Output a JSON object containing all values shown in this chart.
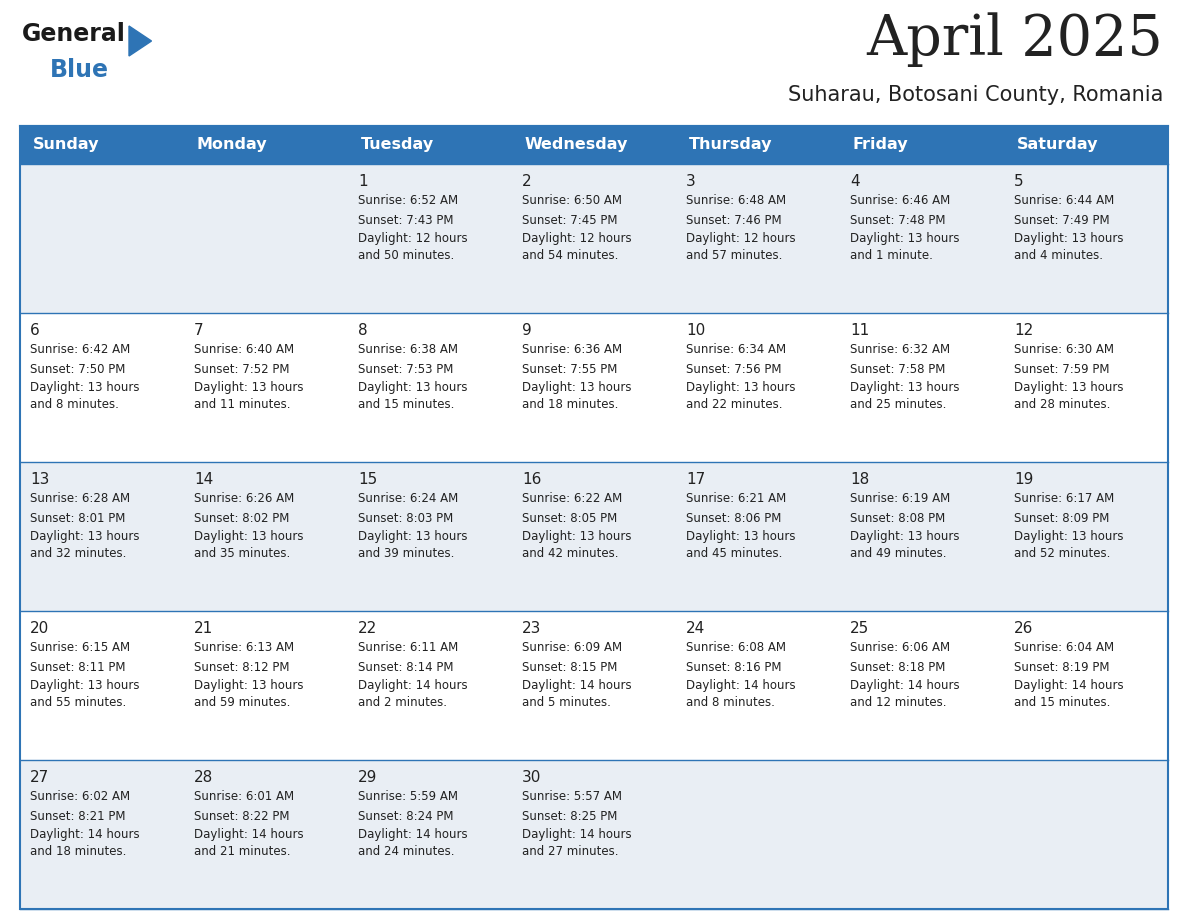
{
  "title": "April 2025",
  "subtitle": "Suharau, Botosani County, Romania",
  "header_bg": "#2e74b5",
  "header_text_color": "#ffffff",
  "row_bg_odd": "#e9eef4",
  "row_bg_even": "#ffffff",
  "border_color": "#2e74b5",
  "text_color": "#222222",
  "days_of_week": [
    "Sunday",
    "Monday",
    "Tuesday",
    "Wednesday",
    "Thursday",
    "Friday",
    "Saturday"
  ],
  "calendar": [
    [
      {
        "day": "",
        "sunrise": "",
        "sunset": "",
        "daylight": ""
      },
      {
        "day": "",
        "sunrise": "",
        "sunset": "",
        "daylight": ""
      },
      {
        "day": "1",
        "sunrise": "Sunrise: 6:52 AM",
        "sunset": "Sunset: 7:43 PM",
        "daylight": "Daylight: 12 hours\nand 50 minutes."
      },
      {
        "day": "2",
        "sunrise": "Sunrise: 6:50 AM",
        "sunset": "Sunset: 7:45 PM",
        "daylight": "Daylight: 12 hours\nand 54 minutes."
      },
      {
        "day": "3",
        "sunrise": "Sunrise: 6:48 AM",
        "sunset": "Sunset: 7:46 PM",
        "daylight": "Daylight: 12 hours\nand 57 minutes."
      },
      {
        "day": "4",
        "sunrise": "Sunrise: 6:46 AM",
        "sunset": "Sunset: 7:48 PM",
        "daylight": "Daylight: 13 hours\nand 1 minute."
      },
      {
        "day": "5",
        "sunrise": "Sunrise: 6:44 AM",
        "sunset": "Sunset: 7:49 PM",
        "daylight": "Daylight: 13 hours\nand 4 minutes."
      }
    ],
    [
      {
        "day": "6",
        "sunrise": "Sunrise: 6:42 AM",
        "sunset": "Sunset: 7:50 PM",
        "daylight": "Daylight: 13 hours\nand 8 minutes."
      },
      {
        "day": "7",
        "sunrise": "Sunrise: 6:40 AM",
        "sunset": "Sunset: 7:52 PM",
        "daylight": "Daylight: 13 hours\nand 11 minutes."
      },
      {
        "day": "8",
        "sunrise": "Sunrise: 6:38 AM",
        "sunset": "Sunset: 7:53 PM",
        "daylight": "Daylight: 13 hours\nand 15 minutes."
      },
      {
        "day": "9",
        "sunrise": "Sunrise: 6:36 AM",
        "sunset": "Sunset: 7:55 PM",
        "daylight": "Daylight: 13 hours\nand 18 minutes."
      },
      {
        "day": "10",
        "sunrise": "Sunrise: 6:34 AM",
        "sunset": "Sunset: 7:56 PM",
        "daylight": "Daylight: 13 hours\nand 22 minutes."
      },
      {
        "day": "11",
        "sunrise": "Sunrise: 6:32 AM",
        "sunset": "Sunset: 7:58 PM",
        "daylight": "Daylight: 13 hours\nand 25 minutes."
      },
      {
        "day": "12",
        "sunrise": "Sunrise: 6:30 AM",
        "sunset": "Sunset: 7:59 PM",
        "daylight": "Daylight: 13 hours\nand 28 minutes."
      }
    ],
    [
      {
        "day": "13",
        "sunrise": "Sunrise: 6:28 AM",
        "sunset": "Sunset: 8:01 PM",
        "daylight": "Daylight: 13 hours\nand 32 minutes."
      },
      {
        "day": "14",
        "sunrise": "Sunrise: 6:26 AM",
        "sunset": "Sunset: 8:02 PM",
        "daylight": "Daylight: 13 hours\nand 35 minutes."
      },
      {
        "day": "15",
        "sunrise": "Sunrise: 6:24 AM",
        "sunset": "Sunset: 8:03 PM",
        "daylight": "Daylight: 13 hours\nand 39 minutes."
      },
      {
        "day": "16",
        "sunrise": "Sunrise: 6:22 AM",
        "sunset": "Sunset: 8:05 PM",
        "daylight": "Daylight: 13 hours\nand 42 minutes."
      },
      {
        "day": "17",
        "sunrise": "Sunrise: 6:21 AM",
        "sunset": "Sunset: 8:06 PM",
        "daylight": "Daylight: 13 hours\nand 45 minutes."
      },
      {
        "day": "18",
        "sunrise": "Sunrise: 6:19 AM",
        "sunset": "Sunset: 8:08 PM",
        "daylight": "Daylight: 13 hours\nand 49 minutes."
      },
      {
        "day": "19",
        "sunrise": "Sunrise: 6:17 AM",
        "sunset": "Sunset: 8:09 PM",
        "daylight": "Daylight: 13 hours\nand 52 minutes."
      }
    ],
    [
      {
        "day": "20",
        "sunrise": "Sunrise: 6:15 AM",
        "sunset": "Sunset: 8:11 PM",
        "daylight": "Daylight: 13 hours\nand 55 minutes."
      },
      {
        "day": "21",
        "sunrise": "Sunrise: 6:13 AM",
        "sunset": "Sunset: 8:12 PM",
        "daylight": "Daylight: 13 hours\nand 59 minutes."
      },
      {
        "day": "22",
        "sunrise": "Sunrise: 6:11 AM",
        "sunset": "Sunset: 8:14 PM",
        "daylight": "Daylight: 14 hours\nand 2 minutes."
      },
      {
        "day": "23",
        "sunrise": "Sunrise: 6:09 AM",
        "sunset": "Sunset: 8:15 PM",
        "daylight": "Daylight: 14 hours\nand 5 minutes."
      },
      {
        "day": "24",
        "sunrise": "Sunrise: 6:08 AM",
        "sunset": "Sunset: 8:16 PM",
        "daylight": "Daylight: 14 hours\nand 8 minutes."
      },
      {
        "day": "25",
        "sunrise": "Sunrise: 6:06 AM",
        "sunset": "Sunset: 8:18 PM",
        "daylight": "Daylight: 14 hours\nand 12 minutes."
      },
      {
        "day": "26",
        "sunrise": "Sunrise: 6:04 AM",
        "sunset": "Sunset: 8:19 PM",
        "daylight": "Daylight: 14 hours\nand 15 minutes."
      }
    ],
    [
      {
        "day": "27",
        "sunrise": "Sunrise: 6:02 AM",
        "sunset": "Sunset: 8:21 PM",
        "daylight": "Daylight: 14 hours\nand 18 minutes."
      },
      {
        "day": "28",
        "sunrise": "Sunrise: 6:01 AM",
        "sunset": "Sunset: 8:22 PM",
        "daylight": "Daylight: 14 hours\nand 21 minutes."
      },
      {
        "day": "29",
        "sunrise": "Sunrise: 5:59 AM",
        "sunset": "Sunset: 8:24 PM",
        "daylight": "Daylight: 14 hours\nand 24 minutes."
      },
      {
        "day": "30",
        "sunrise": "Sunrise: 5:57 AM",
        "sunset": "Sunset: 8:25 PM",
        "daylight": "Daylight: 14 hours\nand 27 minutes."
      },
      {
        "day": "",
        "sunrise": "",
        "sunset": "",
        "daylight": ""
      },
      {
        "day": "",
        "sunrise": "",
        "sunset": "",
        "daylight": ""
      },
      {
        "day": "",
        "sunrise": "",
        "sunset": "",
        "daylight": ""
      }
    ]
  ],
  "logo_general_color": "#1a1a1a",
  "logo_blue_color": "#2e74b5",
  "logo_triangle_color": "#2e74b5"
}
